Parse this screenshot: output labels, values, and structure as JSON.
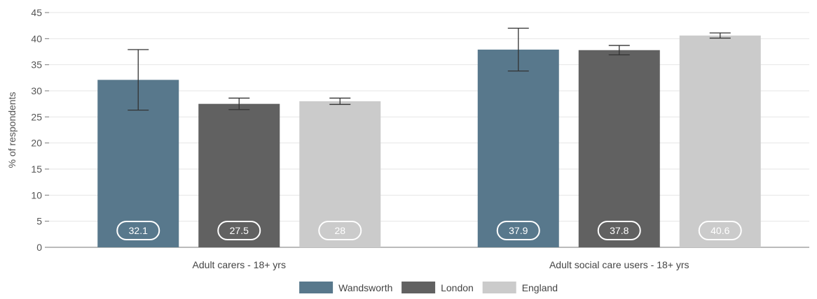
{
  "chart_data": {
    "type": "bar",
    "categories": [
      "Adult carers - 18+ yrs",
      "Adult social care users - 18+ yrs"
    ],
    "ylabel": "% of respondents",
    "xlabel": "",
    "ylim": [
      0,
      45
    ],
    "yticks": [
      0,
      5,
      10,
      15,
      20,
      25,
      30,
      35,
      40,
      45
    ],
    "grid": true,
    "legend_position": "bottom-center",
    "series": [
      {
        "name": "Wandsworth",
        "color": "#58788c",
        "values": [
          32.1,
          37.9
        ],
        "error_low": [
          26.3,
          33.8
        ],
        "error_high": [
          37.9,
          42.0
        ]
      },
      {
        "name": "London",
        "color": "#616161",
        "values": [
          27.5,
          37.8
        ],
        "error_low": [
          26.4,
          36.9
        ],
        "error_high": [
          28.6,
          38.7
        ]
      },
      {
        "name": "England",
        "color": "#cbcbcb",
        "values": [
          28,
          40.6
        ],
        "error_low": [
          27.4,
          40.1
        ],
        "error_high": [
          28.6,
          41.1
        ]
      }
    ],
    "data_labels": [
      [
        "32.1",
        "37.9"
      ],
      [
        "27.5",
        "37.8"
      ],
      [
        "28",
        "40.6"
      ]
    ]
  }
}
